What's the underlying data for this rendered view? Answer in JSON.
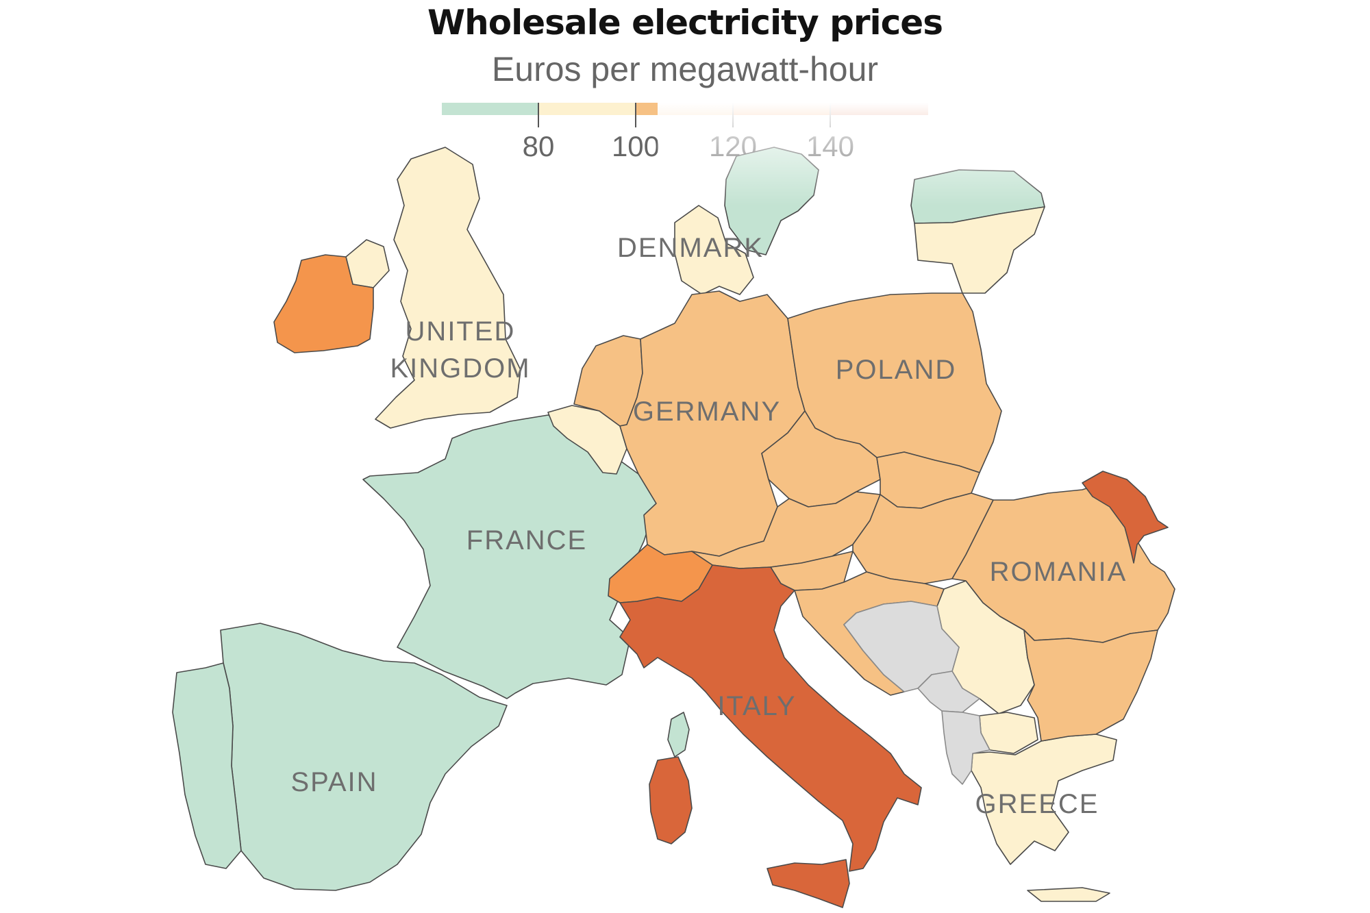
{
  "header": {
    "title": "Wholesale electricity prices",
    "subtitle": "Euros per megawatt-hour"
  },
  "legend": {
    "bins": [
      {
        "label": "below 80",
        "color": "#c3e3d2"
      },
      {
        "label": "80–100",
        "color": "#fdf1cf"
      },
      {
        "label": "100–120",
        "color": "#f6c184"
      },
      {
        "label": "120–140",
        "color": "#f4954c"
      },
      {
        "label": "above 140",
        "color": "#d9663a"
      }
    ],
    "ticks": [
      "80",
      "100",
      "120",
      "140"
    ]
  },
  "colors": {
    "no_data": "#dcdcdc",
    "border": "#4a4a4a",
    "background": "#ffffff"
  },
  "labels": {
    "denmark": "DENMARK",
    "united_kingdom_1": "UNITED",
    "united_kingdom_2": "KINGDOM",
    "poland": "POLAND",
    "germany": "GERMANY",
    "france": "FRANCE",
    "romania": "ROMANIA",
    "italy": "ITALY",
    "spain": "SPAIN",
    "greece": "GREECE"
  },
  "chart_data": {
    "type": "choropleth",
    "title": "Wholesale electricity prices",
    "subtitle": "Euros per megawatt-hour",
    "unit": "Euros per megawatt-hour",
    "bins": [
      {
        "range": [
          null,
          80
        ],
        "color": "#c3e3d2"
      },
      {
        "range": [
          80,
          100
        ],
        "color": "#fdf1cf"
      },
      {
        "range": [
          100,
          120
        ],
        "color": "#f6c184"
      },
      {
        "range": [
          120,
          140
        ],
        "color": "#f4954c"
      },
      {
        "range": [
          140,
          null
        ],
        "color": "#d9663a"
      }
    ],
    "regions": [
      {
        "name": "France",
        "bin": 0
      },
      {
        "name": "Spain",
        "bin": 0
      },
      {
        "name": "Portugal",
        "bin": 0
      },
      {
        "name": "Sweden",
        "bin": 0
      },
      {
        "name": "Latvia",
        "bin": 0
      },
      {
        "name": "United Kingdom",
        "bin": 1
      },
      {
        "name": "Belgium",
        "bin": 1
      },
      {
        "name": "Denmark",
        "bin": 1
      },
      {
        "name": "Lithuania",
        "bin": 1
      },
      {
        "name": "Serbia",
        "bin": 1
      },
      {
        "name": "North Macedonia",
        "bin": 1
      },
      {
        "name": "Greece",
        "bin": 1
      },
      {
        "name": "Netherlands",
        "bin": 2
      },
      {
        "name": "Germany",
        "bin": 2
      },
      {
        "name": "Poland",
        "bin": 2
      },
      {
        "name": "Czech Republic",
        "bin": 2
      },
      {
        "name": "Slovakia",
        "bin": 2
      },
      {
        "name": "Austria",
        "bin": 2
      },
      {
        "name": "Hungary",
        "bin": 2
      },
      {
        "name": "Slovenia",
        "bin": 2
      },
      {
        "name": "Croatia",
        "bin": 2
      },
      {
        "name": "Romania",
        "bin": 2
      },
      {
        "name": "Bulgaria",
        "bin": 2
      },
      {
        "name": "Ireland",
        "bin": 3
      },
      {
        "name": "Switzerland",
        "bin": 3
      },
      {
        "name": "Italy",
        "bin": 4
      },
      {
        "name": "Moldova",
        "bin": 4
      },
      {
        "name": "Bosnia and Herzegovina",
        "bin": null
      },
      {
        "name": "Montenegro",
        "bin": null
      },
      {
        "name": "Albania",
        "bin": null
      }
    ]
  }
}
